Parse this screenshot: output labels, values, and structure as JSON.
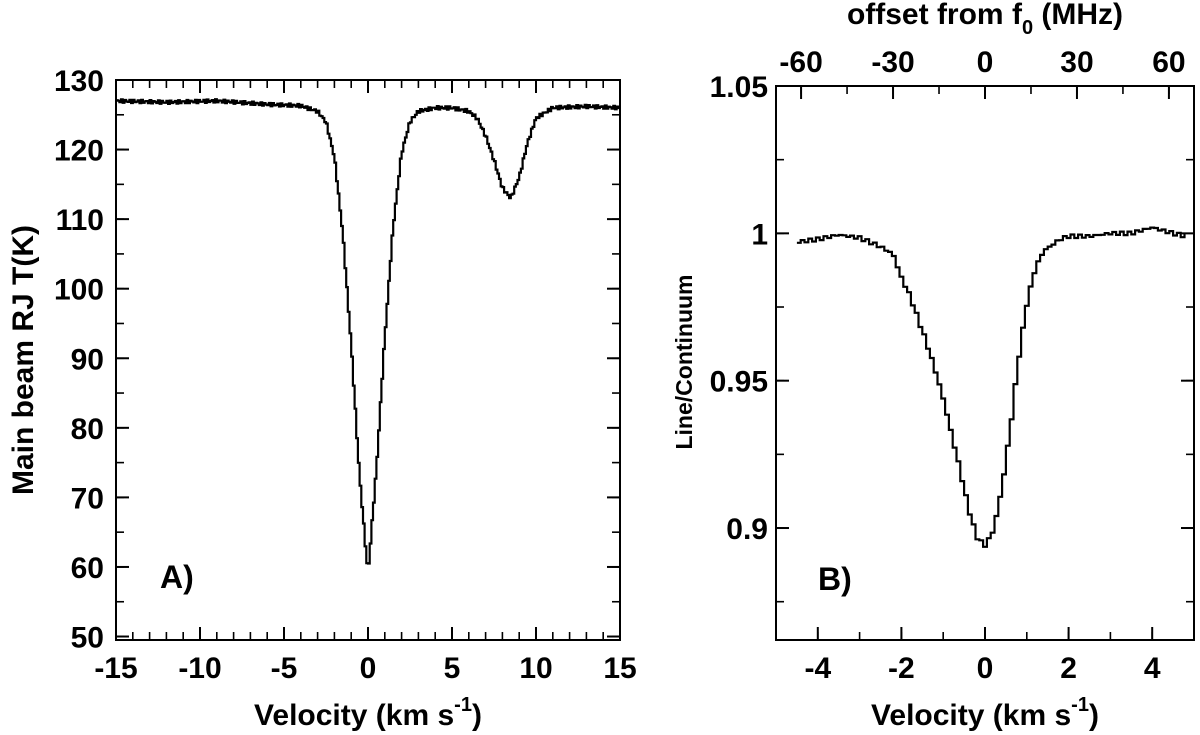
{
  "chart_data": [
    {
      "type": "line",
      "panel_label": "A)",
      "xlabel": "Velocity (km s",
      "xlabel_sup": "-1",
      "xlabel_close": ")",
      "ylabel": "Main beam RJ T(K)",
      "xlim": [
        -15,
        15
      ],
      "ylim": [
        49.5,
        130
      ],
      "xticks": [
        -15,
        -10,
        -5,
        0,
        5,
        10,
        15
      ],
      "xtick_labels": [
        "-15",
        "-10",
        "-5",
        "0",
        "5",
        "10",
        "15"
      ],
      "yticks": [
        50,
        60,
        70,
        80,
        90,
        100,
        110,
        120,
        130
      ],
      "ytick_labels": [
        "50",
        "60",
        "70",
        "80",
        "90",
        "100",
        "110",
        "120",
        "130"
      ],
      "series": [
        {
          "x": [
            -15,
            -12,
            -9,
            -6,
            -4,
            -3,
            -2.5,
            -2,
            -1.5,
            -1,
            -0.5,
            0,
            0.5,
            1,
            1.5,
            2,
            2.5,
            3,
            4,
            5,
            6,
            6.5,
            7,
            7.5,
            8,
            8.5,
            9,
            9.5,
            10,
            11,
            13,
            15
          ],
          "y": [
            127,
            126.8,
            127,
            126.5,
            126.3,
            125.5,
            124,
            119,
            108,
            92,
            73,
            59,
            74,
            93,
            109,
            119.5,
            124,
            125.5,
            126,
            126,
            125.5,
            124.5,
            122,
            118.5,
            114.5,
            113,
            116,
            121,
            124.5,
            126,
            126.2,
            126
          ]
        }
      ]
    },
    {
      "type": "line",
      "panel_label": "B)",
      "xlabel": "Velocity (km s",
      "xlabel_sup": "-1",
      "xlabel_close": ")",
      "ylabel": "Line/Continuum",
      "x2label": "offset from f",
      "x2label_sub": "0",
      "x2label_close": " (MHz)",
      "xlim": [
        -5,
        5
      ],
      "ylim": [
        0.862,
        1.05
      ],
      "xticks": [
        -4,
        -2,
        0,
        2,
        4
      ],
      "xtick_labels": [
        "-4",
        "-2",
        "0",
        "2",
        "4"
      ],
      "yticks": [
        0.9,
        0.95,
        1.0,
        1.05
      ],
      "ytick_labels": [
        "0.9",
        "0.95",
        "1",
        "1.05"
      ],
      "x2ticks": [
        -60,
        -30,
        0,
        30,
        60
      ],
      "x2tick_labels": [
        "-60",
        "-30",
        "0",
        "30",
        "60"
      ],
      "series": [
        {
          "x": [
            -4.5,
            -4,
            -3.5,
            -3,
            -2.5,
            -2.2,
            -2,
            -1.8,
            -1.6,
            -1.4,
            -1.2,
            -1,
            -0.8,
            -0.6,
            -0.4,
            -0.2,
            0,
            0.2,
            0.4,
            0.6,
            0.8,
            1,
            1.2,
            1.4,
            1.6,
            1.8,
            2,
            2.5,
            3,
            3.5,
            4,
            4.5,
            4.8
          ],
          "y": [
            0.997,
            0.998,
            0.9995,
            0.9985,
            0.9955,
            0.993,
            0.985,
            0.979,
            0.971,
            0.963,
            0.954,
            0.944,
            0.932,
            0.92,
            0.907,
            0.897,
            0.894,
            0.899,
            0.913,
            0.933,
            0.957,
            0.976,
            0.988,
            0.994,
            0.996,
            0.998,
            0.999,
            0.999,
            1.0,
            1.0,
            1.002,
            1.0,
            0.999
          ]
        }
      ]
    }
  ]
}
